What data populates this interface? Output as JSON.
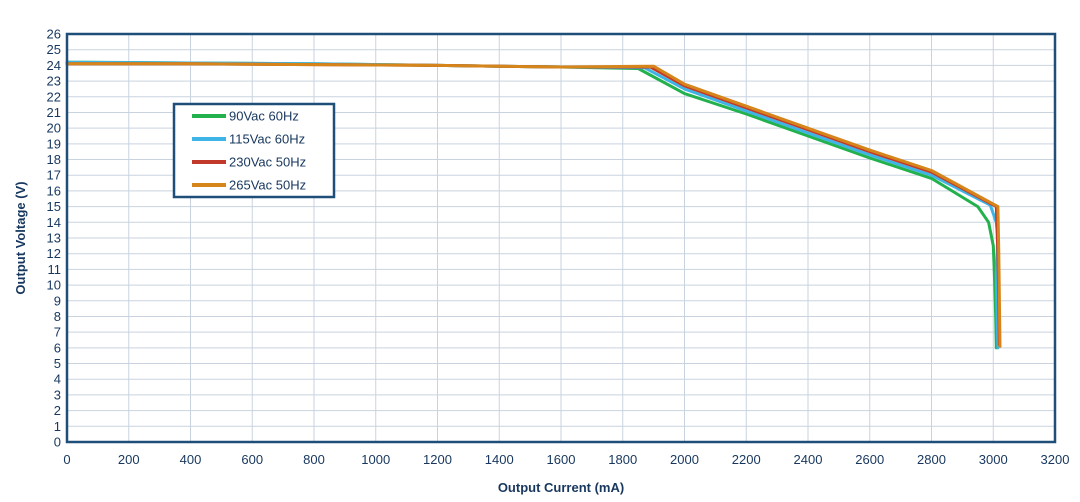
{
  "chart_data": {
    "type": "line",
    "title": "",
    "xlabel": "Output Current (mA)",
    "ylabel": "Output Voltage (V)",
    "xlim": [
      0,
      3200
    ],
    "ylim": [
      0,
      26
    ],
    "x_ticks": [
      0,
      200,
      400,
      600,
      800,
      1000,
      1200,
      1400,
      1600,
      1800,
      2000,
      2200,
      2400,
      2600,
      2800,
      3000,
      3200
    ],
    "y_ticks": [
      0,
      1,
      2,
      3,
      4,
      5,
      6,
      7,
      8,
      9,
      10,
      11,
      12,
      13,
      14,
      15,
      16,
      17,
      18,
      19,
      20,
      21,
      22,
      23,
      24,
      25,
      26
    ],
    "grid": true,
    "legend_position": "upper-left",
    "series": [
      {
        "name": "90Vac 60Hz",
        "color": "#22b14c",
        "points": [
          [
            0,
            24.2
          ],
          [
            50,
            24.2
          ],
          [
            400,
            24.15
          ],
          [
            800,
            24.1
          ],
          [
            1200,
            24.0
          ],
          [
            1600,
            23.9
          ],
          [
            1850,
            23.8
          ],
          [
            2000,
            22.2
          ],
          [
            2200,
            20.9
          ],
          [
            2400,
            19.5
          ],
          [
            2600,
            18.1
          ],
          [
            2800,
            16.8
          ],
          [
            2950,
            15.0
          ],
          [
            2985,
            14.0
          ],
          [
            3000,
            12.5
          ],
          [
            3005,
            10.0
          ],
          [
            3008,
            8.0
          ],
          [
            3010,
            6.0
          ]
        ]
      },
      {
        "name": "115Vac 60Hz",
        "color": "#3eb4e6",
        "points": [
          [
            0,
            24.2
          ],
          [
            400,
            24.15
          ],
          [
            800,
            24.1
          ],
          [
            1200,
            24.0
          ],
          [
            1600,
            23.9
          ],
          [
            1870,
            23.85
          ],
          [
            2000,
            22.5
          ],
          [
            2200,
            21.1
          ],
          [
            2400,
            19.7
          ],
          [
            2600,
            18.3
          ],
          [
            2800,
            17.0
          ],
          [
            2990,
            15.1
          ],
          [
            3010,
            14.0
          ],
          [
            3015,
            13.0
          ],
          [
            3010,
            10.7
          ],
          [
            3012,
            8.0
          ],
          [
            3015,
            6.0
          ]
        ]
      },
      {
        "name": "230Vac 50Hz",
        "color": "#c0392b",
        "points": [
          [
            0,
            24.1
          ],
          [
            400,
            24.1
          ],
          [
            800,
            24.05
          ],
          [
            1200,
            24.0
          ],
          [
            1600,
            23.9
          ],
          [
            1890,
            23.9
          ],
          [
            2000,
            22.7
          ],
          [
            2200,
            21.3
          ],
          [
            2400,
            19.9
          ],
          [
            2600,
            18.5
          ],
          [
            2800,
            17.2
          ],
          [
            3010,
            15.0
          ],
          [
            3015,
            12.0
          ],
          [
            3018,
            9.0
          ],
          [
            3020,
            6.2
          ]
        ]
      },
      {
        "name": "265Vac 50Hz",
        "color": "#d6851a",
        "points": [
          [
            0,
            24.1
          ],
          [
            400,
            24.1
          ],
          [
            800,
            24.05
          ],
          [
            1200,
            24.0
          ],
          [
            1600,
            23.9
          ],
          [
            1900,
            23.95
          ],
          [
            2000,
            22.8
          ],
          [
            2200,
            21.4
          ],
          [
            2400,
            20.0
          ],
          [
            2600,
            18.6
          ],
          [
            2800,
            17.3
          ],
          [
            3015,
            15.0
          ],
          [
            3018,
            12.0
          ],
          [
            3020,
            9.0
          ],
          [
            3022,
            6.1
          ]
        ]
      }
    ]
  }
}
